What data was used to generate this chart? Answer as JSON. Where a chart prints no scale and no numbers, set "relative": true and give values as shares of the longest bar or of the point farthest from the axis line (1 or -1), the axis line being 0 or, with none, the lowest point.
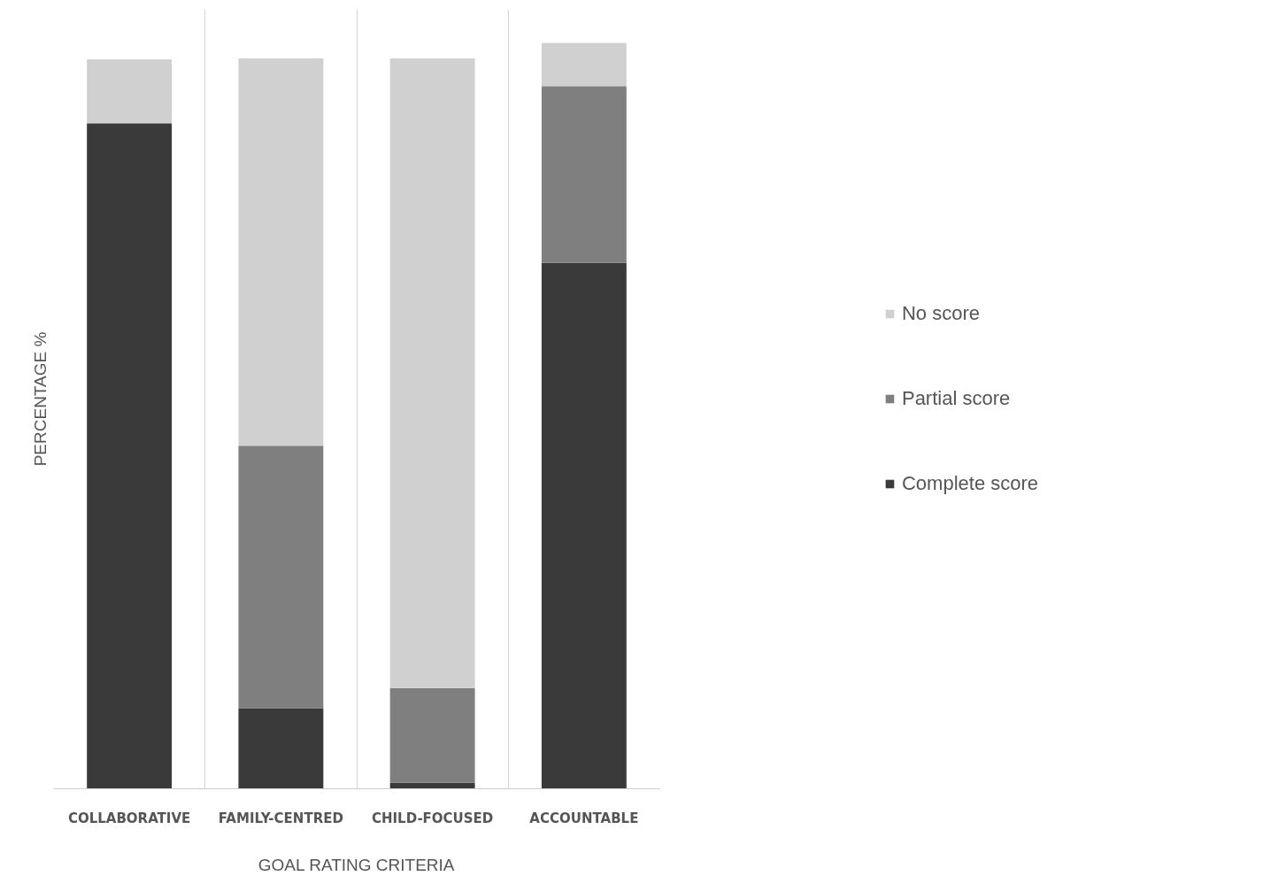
{
  "chart_data": {
    "type": "bar",
    "stacked": true,
    "relative": true,
    "xlabel": "GOAL RATING CRITERIA",
    "ylabel": "PERCENTAGE %",
    "categories": [
      "COLLABORATIVE",
      "FAMILY-CENTRED",
      "CHILD-FOCUSED",
      "ACCOUNTABLE"
    ],
    "series": [
      {
        "name": "Complete score",
        "color": "#3a3a3a",
        "values": [
          0.892,
          0.108,
          0.008,
          0.705
        ]
      },
      {
        "name": "Partial score",
        "color": "#7f7f7f",
        "values": [
          0,
          0.352,
          0.127,
          0.237
        ]
      },
      {
        "name": "No score",
        "color": "#d0d0d0",
        "values": [
          0.086,
          0.519,
          0.844,
          0.058
        ]
      }
    ],
    "grid": "x",
    "legend": "right"
  }
}
